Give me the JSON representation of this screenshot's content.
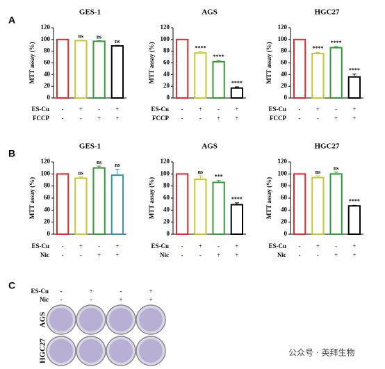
{
  "panel_labels": [
    "A",
    "B",
    "C"
  ],
  "chart_data": [
    {
      "type": "bar",
      "title": "GES-1",
      "ylabel": "MTT assay (%)",
      "ylim": [
        0,
        120
      ],
      "yticks": [
        0,
        20,
        40,
        60,
        80,
        100,
        120
      ],
      "values": [
        100,
        98,
        97,
        89
      ],
      "errors": [
        0,
        1,
        1,
        1
      ],
      "annotations": [
        null,
        "ns",
        "ns",
        "ns"
      ],
      "colors": [
        "#e8262b",
        "#c8c82a",
        "#2f9a34",
        "#000000"
      ],
      "conditions": [
        {
          "name": "ES-Cu",
          "signs": [
            "-",
            "+",
            "-",
            "+"
          ]
        },
        {
          "name": "FCCP",
          "signs": [
            "-",
            "-",
            "+",
            "+"
          ]
        }
      ]
    },
    {
      "type": "bar",
      "title": "AGS",
      "ylabel": "MTT assay (%)",
      "ylim": [
        0,
        120
      ],
      "yticks": [
        0,
        20,
        40,
        60,
        80,
        100,
        120
      ],
      "values": [
        100,
        77,
        62,
        17
      ],
      "errors": [
        0,
        2,
        2,
        2
      ],
      "annotations": [
        null,
        "****",
        "****",
        "****"
      ],
      "colors": [
        "#e8262b",
        "#c8c82a",
        "#2f9a34",
        "#000000"
      ],
      "conditions": [
        {
          "name": "ES-Cu",
          "signs": [
            "-",
            "+",
            "-",
            "+"
          ]
        },
        {
          "name": "FCCP",
          "signs": [
            "-",
            "-",
            "+",
            "+"
          ]
        }
      ]
    },
    {
      "type": "bar",
      "title": "HGC27",
      "ylabel": "MTT assay (%)",
      "ylim": [
        0,
        120
      ],
      "yticks": [
        0,
        20,
        40,
        60,
        80,
        100,
        120
      ],
      "values": [
        100,
        76,
        86,
        36
      ],
      "errors": [
        0,
        2,
        2,
        5
      ],
      "annotations": [
        null,
        "****",
        "****",
        "****"
      ],
      "colors": [
        "#e8262b",
        "#c8c82a",
        "#2f9a34",
        "#000000"
      ],
      "conditions": [
        {
          "name": "ES-Cu",
          "signs": [
            "-",
            "+",
            "-",
            "+"
          ]
        },
        {
          "name": "FCCP",
          "signs": [
            "-",
            "-",
            "+",
            "+"
          ]
        }
      ]
    },
    {
      "type": "bar",
      "title": "GES-1",
      "ylabel": "MTT assay (%)",
      "ylim": [
        0,
        120
      ],
      "yticks": [
        0,
        20,
        40,
        60,
        80,
        100,
        120
      ],
      "values": [
        100,
        93,
        110,
        98
      ],
      "errors": [
        0,
        2,
        3,
        10
      ],
      "annotations": [
        null,
        "ns",
        "ns",
        "ns"
      ],
      "colors": [
        "#e8262b",
        "#c8c82a",
        "#2f9a34",
        "#2a9aa8"
      ],
      "conditions": [
        {
          "name": "ES-Cu",
          "signs": [
            "-",
            "+",
            "-",
            "+"
          ]
        },
        {
          "name": "Nic",
          "signs": [
            "-",
            "-",
            "+",
            "+"
          ]
        }
      ]
    },
    {
      "type": "bar",
      "title": "AGS",
      "ylabel": "MTT assay (%)",
      "ylim": [
        0,
        120
      ],
      "yticks": [
        0,
        20,
        40,
        60,
        80,
        100,
        120
      ],
      "values": [
        100,
        91,
        86,
        49
      ],
      "errors": [
        0,
        6,
        3,
        3
      ],
      "annotations": [
        null,
        "ns",
        "***",
        "****"
      ],
      "colors": [
        "#e8262b",
        "#c8c82a",
        "#2f9a34",
        "#000000"
      ],
      "conditions": [
        {
          "name": "ES-Cu",
          "signs": [
            "-",
            "+",
            "-",
            "+"
          ]
        },
        {
          "name": "Nic",
          "signs": [
            "-",
            "-",
            "+",
            "+"
          ]
        }
      ]
    },
    {
      "type": "bar",
      "title": "HGC27",
      "ylabel": "MTT assay (%)",
      "ylim": [
        0,
        120
      ],
      "yticks": [
        0,
        20,
        40,
        60,
        80,
        100,
        120
      ],
      "values": [
        100,
        94,
        100,
        47
      ],
      "errors": [
        0,
        3,
        3,
        1
      ],
      "annotations": [
        null,
        "ns",
        "ns",
        "****"
      ],
      "colors": [
        "#e8262b",
        "#c8c82a",
        "#2f9a34",
        "#000000"
      ],
      "conditions": [
        {
          "name": "ES-Cu",
          "signs": [
            "-",
            "+",
            "-",
            "+"
          ]
        },
        {
          "name": "Nic",
          "signs": [
            "-",
            "-",
            "+",
            "+"
          ]
        }
      ]
    }
  ],
  "panel_c": {
    "conditions": [
      {
        "name": "ES-Cu",
        "signs": [
          "-",
          "+",
          "-",
          "+"
        ]
      },
      {
        "name": "Nic",
        "signs": [
          "-",
          "-",
          "+",
          "+"
        ]
      }
    ],
    "rows": [
      "AGS",
      "HGC27"
    ]
  },
  "watermark": "公众号 · 英拜生物"
}
